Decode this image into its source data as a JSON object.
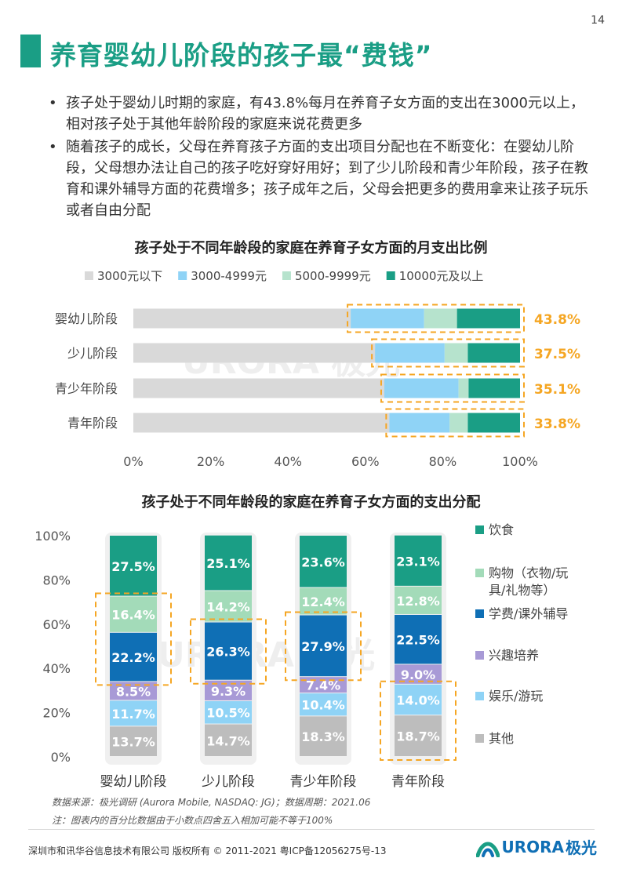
{
  "page": {
    "number": "14"
  },
  "title": "养育婴幼儿阶段的孩子最“费钱”",
  "bullets": [
    "孩子处于婴幼儿时期的家庭，有43.8%每月在养育子女方面的支出在3000元以上，相对孩子处于其他年龄阶段的家庭来说花费更多",
    "随着孩子的成长，父母在养育孩子方面的支出项目分配也在不断变化：在婴幼儿阶段，父母想办法让自己的孩子吃好穿好用好；到了少儿阶段和青少年阶段，孩子在教育和课外辅导方面的花费增多；孩子成年之后，父母会把更多的费用拿来让孩子玩乐或者自由分配"
  ],
  "watermark": "URORA 极光",
  "chart_data": [
    {
      "type": "bar",
      "orientation": "horizontal",
      "stacked": true,
      "title": "孩子处于不同年龄段的家庭在养育子女方面的月支出比例",
      "categories": [
        "婴幼儿阶段",
        "少儿阶段",
        "青少年阶段",
        "青年阶段"
      ],
      "series": [
        {
          "name": "3000元以下",
          "color": "#d9d9d9",
          "values": [
            56.2,
            62.5,
            64.9,
            66.2
          ]
        },
        {
          "name": "3000-4999元",
          "color": "#8fd3f6",
          "values": [
            19.0,
            18.0,
            19.2,
            15.6
          ]
        },
        {
          "name": "5000-9999元",
          "color": "#b6e3cd",
          "values": [
            8.5,
            6.0,
            2.6,
            4.7
          ]
        },
        {
          "name": "10000元及以上",
          "color": "#1a9e85",
          "values": [
            16.3,
            13.5,
            13.3,
            13.5
          ]
        }
      ],
      "highlight_labels": [
        "43.8%",
        "37.5%",
        "35.1%",
        "33.8%"
      ],
      "highlight_color": "#f5a623",
      "xlim": [
        0,
        100
      ],
      "xticks": [
        "0%",
        "20%",
        "40%",
        "60%",
        "80%",
        "100%"
      ],
      "legend": "top"
    },
    {
      "type": "bar",
      "orientation": "vertical",
      "stacked": true,
      "title": "孩子处于不同年龄段的家庭在养育子女方面的支出分配",
      "categories": [
        "婴幼儿阶段",
        "少儿阶段",
        "青少年阶段",
        "青年阶段"
      ],
      "series": [
        {
          "name": "其他",
          "color": "#bdbdbd",
          "values": [
            13.7,
            14.7,
            18.3,
            18.7
          ],
          "labels": [
            "13.7%",
            "14.7%",
            "18.3%",
            "18.7%"
          ]
        },
        {
          "name": "娱乐/游玩",
          "color": "#8fd3f6",
          "values": [
            11.7,
            10.5,
            10.4,
            14.0
          ],
          "labels": [
            "11.7%",
            "10.5%",
            "10.4%",
            "14.0%"
          ]
        },
        {
          "name": "兴趣培养",
          "color": "#a89ad6",
          "values": [
            8.5,
            9.3,
            7.4,
            9.0
          ],
          "labels": [
            "8.5%",
            "9.3%",
            "7.4%",
            "9.0%"
          ]
        },
        {
          "name": "学费/课外辅导",
          "color": "#0f6fb5",
          "values": [
            22.2,
            26.3,
            27.9,
            22.5
          ],
          "labels": [
            "22.2%",
            "26.3%",
            "27.9%",
            "22.5%"
          ]
        },
        {
          "name": "购物（衣物/玩具/礼物等）",
          "color": "#a3dbb9",
          "values": [
            16.4,
            14.2,
            12.4,
            12.8
          ],
          "labels": [
            "16.4%",
            "14.2%",
            "12.4%",
            "12.8%"
          ]
        },
        {
          "name": "饮食",
          "color": "#1a9e85",
          "values": [
            27.5,
            25.1,
            23.6,
            23.1
          ],
          "labels": [
            "27.5%",
            "25.1%",
            "23.6%",
            "23.1%"
          ]
        }
      ],
      "ylim": [
        0,
        100
      ],
      "yticks": [
        "0%",
        "20%",
        "40%",
        "60%",
        "80%",
        "100%"
      ],
      "legend": "right",
      "legend_items": [
        {
          "lines": [
            "饮食"
          ],
          "color": "#1a9e85"
        },
        {
          "lines": [
            "购物（衣物/玩",
            "具/礼物等）"
          ],
          "color": "#a3dbb9"
        },
        {
          "lines": [
            "学费/课外辅导"
          ],
          "color": "#0f6fb5"
        },
        {
          "lines": [
            "兴趣培养"
          ],
          "color": "#a89ad6"
        },
        {
          "lines": [
            "娱乐/游玩"
          ],
          "color": "#8fd3f6"
        },
        {
          "lines": [
            "其他"
          ],
          "color": "#bdbdbd"
        }
      ]
    }
  ],
  "notes": {
    "source": "数据来源：极光调研 (Aurora Mobile, NASDAQ: JG)；数据周期：2021.06",
    "footnote": "注：图表内的百分比数据由于小数点四舍五入相加可能不等于100%"
  },
  "footer": {
    "copyright": "深圳市和讯华谷信息技术有限公司 版权所有 © 2011-2021 粤ICP备12056275号-13",
    "logo_text": "URORA",
    "logo_cn": "极光"
  }
}
